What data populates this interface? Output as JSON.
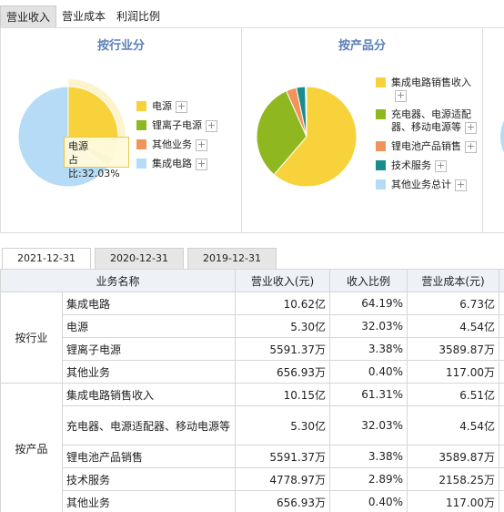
{
  "tabs": [
    "营业收入",
    "营业成本",
    "利润比例"
  ],
  "panels": [
    {
      "title": "按行业分",
      "legend": [
        "电源",
        "锂离子电源",
        "其他业务",
        "集成电路"
      ],
      "values": [
        32.03,
        3.38,
        0.4,
        64.19
      ],
      "colors": [
        "#f7d23a",
        "#8fb820",
        "#f2935c",
        "#b5dbf6"
      ]
    },
    {
      "title": "按产品分",
      "legend": [
        "集成电路销售收入",
        "充电器、电源适配器、移动电源等",
        "锂电池产品销售",
        "技术服务",
        "其他业务总计"
      ],
      "values": [
        61.31,
        32.03,
        3.38,
        2.89,
        0.4
      ],
      "colors": [
        "#f7d23a",
        "#8fb820",
        "#f2935c",
        "#1a8c8c",
        "#b5dbf6"
      ]
    }
  ],
  "tooltip": {
    "name": "电源",
    "text": "占比:32.03%"
  },
  "date_tabs": [
    "2021-12-31",
    "2020-12-31",
    "2019-12-31"
  ],
  "table": {
    "header": [
      "业务名称",
      "营业收入(元)",
      "收入比例",
      "营业成本(元)"
    ],
    "groups": [
      {
        "label": "按行业",
        "rows": [
          [
            "集成电路",
            "10.62亿",
            "64.19%",
            "6.73亿"
          ],
          [
            "电源",
            "5.30亿",
            "32.03%",
            "4.54亿"
          ],
          [
            "锂离子电源",
            "5591.37万",
            "3.38%",
            "3589.87万"
          ],
          [
            "其他业务",
            "656.93万",
            "0.40%",
            "117.00万"
          ]
        ]
      },
      {
        "label": "按产品",
        "rows": [
          [
            "集成电路销售收入",
            "10.15亿",
            "61.31%",
            "6.51亿"
          ],
          [
            "充电器、电源适配器、移动电源等",
            "5.30亿",
            "32.03%",
            "4.54亿"
          ],
          [
            "锂电池产品销售",
            "5591.37万",
            "3.38%",
            "3589.87万"
          ],
          [
            "技术服务",
            "4778.97万",
            "2.89%",
            "2158.25万"
          ],
          [
            "其他业务",
            "656.93万",
            "0.40%",
            "117.00万"
          ]
        ]
      }
    ]
  }
}
